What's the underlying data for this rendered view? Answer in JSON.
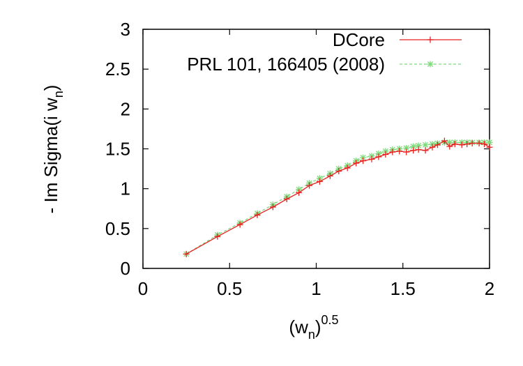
{
  "chart_data": {
    "type": "line",
    "title": "",
    "xlabel": {
      "base": "(w",
      "sub": "n",
      "close": ")",
      "sup": "0.5"
    },
    "ylabel": {
      "base": "- Im Sigma(i w",
      "sub": "n",
      "close": ")"
    },
    "xlim": [
      0,
      2
    ],
    "ylim": [
      0,
      3
    ],
    "xticks": [
      "0",
      "0.5",
      "1",
      "1.5",
      "2"
    ],
    "yticks": [
      "0",
      "0.5",
      "1",
      "1.5",
      "2",
      "2.5",
      "3"
    ],
    "grid": false,
    "legend_position": "top-right",
    "series": [
      {
        "name": "DCore",
        "color": "#e8211f",
        "line_style": "solid",
        "marker": "plus",
        "points": [
          [
            0.25,
            0.18
          ],
          [
            0.43,
            0.4
          ],
          [
            0.56,
            0.55
          ],
          [
            0.66,
            0.67
          ],
          [
            0.75,
            0.77
          ],
          [
            0.83,
            0.87
          ],
          [
            0.9,
            0.95
          ],
          [
            0.96,
            1.04
          ],
          [
            1.02,
            1.09
          ],
          [
            1.08,
            1.16
          ],
          [
            1.13,
            1.22
          ],
          [
            1.18,
            1.26
          ],
          [
            1.23,
            1.32
          ],
          [
            1.27,
            1.35
          ],
          [
            1.32,
            1.37
          ],
          [
            1.36,
            1.4
          ],
          [
            1.4,
            1.43
          ],
          [
            1.44,
            1.46
          ],
          [
            1.48,
            1.47
          ],
          [
            1.52,
            1.46
          ],
          [
            1.56,
            1.48
          ],
          [
            1.59,
            1.49
          ],
          [
            1.63,
            1.48
          ],
          [
            1.67,
            1.52
          ],
          [
            1.7,
            1.55
          ],
          [
            1.74,
            1.6
          ],
          [
            1.77,
            1.53
          ],
          [
            1.8,
            1.56
          ],
          [
            1.84,
            1.55
          ],
          [
            1.87,
            1.56
          ],
          [
            1.9,
            1.57
          ],
          [
            1.94,
            1.57
          ],
          [
            1.97,
            1.56
          ],
          [
            2.0,
            1.52
          ]
        ]
      },
      {
        "name": "PRL 101, 166405 (2008)",
        "color": "#7cd97a",
        "line_style": "dashed",
        "marker": "star",
        "points": [
          [
            0.25,
            0.18
          ],
          [
            0.43,
            0.42
          ],
          [
            0.56,
            0.57
          ],
          [
            0.66,
            0.69
          ],
          [
            0.75,
            0.8
          ],
          [
            0.83,
            0.9
          ],
          [
            0.9,
            0.99
          ],
          [
            0.96,
            1.07
          ],
          [
            1.02,
            1.13
          ],
          [
            1.08,
            1.19
          ],
          [
            1.13,
            1.25
          ],
          [
            1.18,
            1.29
          ],
          [
            1.23,
            1.35
          ],
          [
            1.27,
            1.39
          ],
          [
            1.32,
            1.41
          ],
          [
            1.36,
            1.44
          ],
          [
            1.4,
            1.47
          ],
          [
            1.44,
            1.49
          ],
          [
            1.48,
            1.5
          ],
          [
            1.52,
            1.51
          ],
          [
            1.56,
            1.53
          ],
          [
            1.59,
            1.54
          ],
          [
            1.63,
            1.55
          ],
          [
            1.67,
            1.56
          ],
          [
            1.7,
            1.57
          ],
          [
            1.74,
            1.58
          ],
          [
            1.77,
            1.58
          ],
          [
            1.8,
            1.58
          ],
          [
            1.84,
            1.58
          ],
          [
            1.87,
            1.58
          ],
          [
            1.9,
            1.58
          ],
          [
            1.94,
            1.58
          ],
          [
            1.97,
            1.58
          ],
          [
            2.0,
            1.58
          ]
        ]
      }
    ]
  }
}
